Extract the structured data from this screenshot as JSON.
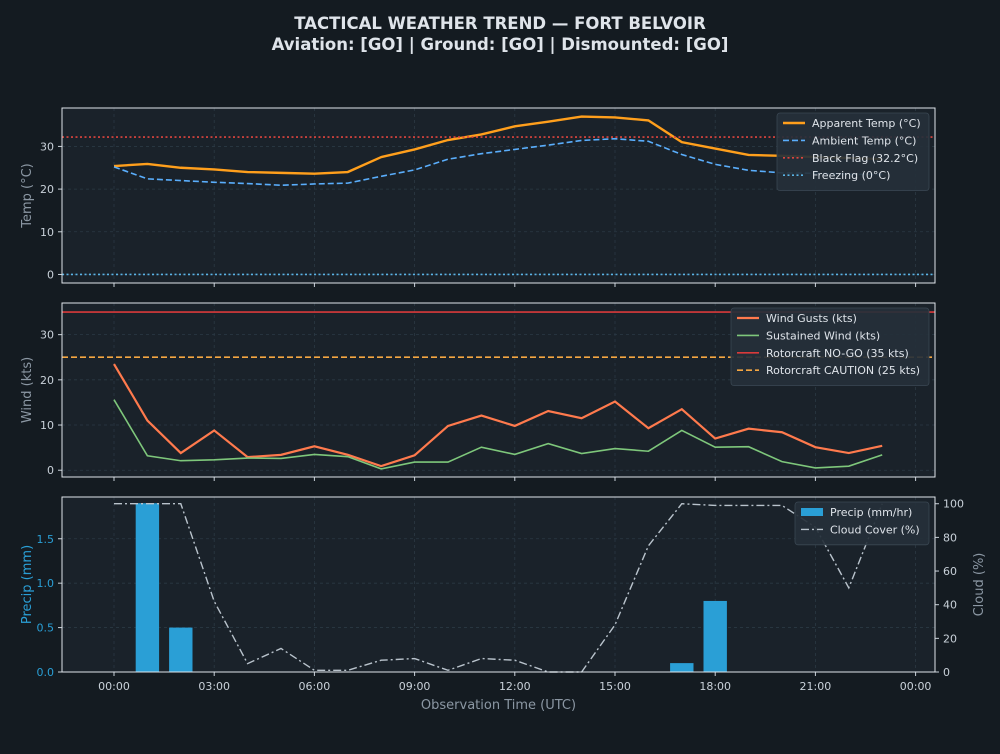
{
  "page": {
    "title_line1": "TACTICAL WEATHER TREND — FORT BELVOIR",
    "title_line2": "Aviation: [GO]  |  Ground: [GO]  |  Dismounted: [GO]"
  },
  "colors": {
    "background": "#141b21",
    "panel": "#1a222a",
    "grid": "#2b3944",
    "axis_text": "#c9d1d9",
    "label_text": "#8b97a3",
    "apparent_temp": "#ff9f1c",
    "ambient_temp": "#5aaefc",
    "black_flag": "#e0443e",
    "freezing": "#5ab4e6",
    "gusts": "#ff7a4d",
    "sustained": "#7ec77b",
    "nogo": "#d93a3a",
    "caution": "#f5a742",
    "precip": "#2a9fd6",
    "cloud": "#b9c3cc"
  },
  "chart_data": [
    {
      "type": "line",
      "panel": "temperature",
      "ylabel": "Temp (°C)",
      "ylim": [
        -2,
        39
      ],
      "yticks": [
        0,
        10,
        20,
        30
      ],
      "x_hours": [
        0,
        1,
        2,
        3,
        4,
        5,
        6,
        7,
        8,
        9,
        10,
        11,
        12,
        13,
        14,
        15,
        16,
        17,
        18,
        19,
        20,
        21,
        22,
        23
      ],
      "series": [
        {
          "name": "Apparent Temp (°C)",
          "style": "solid",
          "values": [
            25.4,
            25.9,
            25.0,
            24.6,
            24.0,
            23.8,
            23.6,
            24.0,
            27.5,
            29.3,
            31.5,
            32.8,
            34.7,
            35.8,
            37.0,
            36.8,
            36.1,
            31.0,
            29.5,
            28.0,
            27.8,
            27.5,
            27.3,
            27.0
          ]
        },
        {
          "name": "Ambient Temp (°C)",
          "style": "dashed",
          "values": [
            25.2,
            22.4,
            22.0,
            21.6,
            21.3,
            20.9,
            21.2,
            21.4,
            23.0,
            24.5,
            27.0,
            28.3,
            29.3,
            30.3,
            31.4,
            31.8,
            31.2,
            28.1,
            25.8,
            24.4,
            23.8,
            23.7,
            23.5,
            23.4
          ]
        }
      ],
      "reference_lines": [
        {
          "name": "Black Flag (32.2°C)",
          "value": 32.2,
          "style": "dotted"
        },
        {
          "name": "Freezing (0°C)",
          "value": 0,
          "style": "dotted"
        }
      ],
      "legend": "top-right",
      "grid": true
    },
    {
      "type": "line",
      "panel": "wind",
      "ylabel": "Wind (kts)",
      "ylim": [
        -1.5,
        37
      ],
      "yticks": [
        0,
        10,
        20,
        30
      ],
      "x_hours": [
        0,
        1,
        2,
        3,
        4,
        5,
        6,
        7,
        8,
        9,
        10,
        11,
        12,
        13,
        14,
        15,
        16,
        17,
        18,
        19,
        20,
        21,
        22,
        23
      ],
      "series": [
        {
          "name": "Wind Gusts (kts)",
          "style": "solid",
          "values": [
            23.5,
            11.0,
            3.8,
            8.8,
            2.9,
            3.4,
            5.3,
            3.4,
            0.9,
            3.3,
            9.8,
            12.1,
            9.8,
            13.1,
            11.5,
            15.2,
            9.3,
            13.5,
            7.0,
            9.2,
            8.4,
            5.1,
            3.8,
            5.4
          ]
        },
        {
          "name": "Sustained Wind (kts)",
          "style": "solid",
          "values": [
            15.6,
            3.2,
            2.1,
            2.3,
            2.7,
            2.6,
            3.5,
            3.0,
            0.3,
            1.8,
            1.8,
            5.1,
            3.5,
            5.9,
            3.7,
            4.8,
            4.2,
            8.8,
            5.1,
            5.2,
            1.9,
            0.5,
            0.9,
            3.4
          ]
        }
      ],
      "reference_lines": [
        {
          "name": "Rotorcraft NO-GO (35 kts)",
          "value": 35,
          "style": "solid"
        },
        {
          "name": "Rotorcraft CAUTION (25 kts)",
          "value": 25,
          "style": "dashed"
        }
      ],
      "legend": "top-right",
      "grid": true
    },
    {
      "type": "bar",
      "panel": "precipitation",
      "ylabel": "Precip (mm)",
      "y2label": "Cloud (%)",
      "xlabel": "Observation Time (UTC)",
      "ylim": [
        0,
        1.97
      ],
      "yticks": [
        0.0,
        0.5,
        1.0,
        1.5
      ],
      "y2lim": [
        0,
        104
      ],
      "y2ticks": [
        0,
        20,
        40,
        60,
        80,
        100
      ],
      "x_hours": [
        0,
        1,
        2,
        3,
        4,
        5,
        6,
        7,
        8,
        9,
        10,
        11,
        12,
        13,
        14,
        15,
        16,
        17,
        18,
        19,
        20,
        21,
        22,
        23
      ],
      "xtick_labels": [
        "00:00",
        "03:00",
        "06:00",
        "09:00",
        "12:00",
        "15:00",
        "18:00",
        "21:00",
        "00:00"
      ],
      "xtick_hours": [
        0,
        3,
        6,
        9,
        12,
        15,
        18,
        21,
        24
      ],
      "series": [
        {
          "name": "Precip (mm/hr)",
          "kind": "bar",
          "axis": "left",
          "values": [
            0,
            1.9,
            0.5,
            0,
            0,
            0,
            0,
            0,
            0,
            0,
            0,
            0,
            0,
            0,
            0,
            0,
            0,
            0.1,
            0.8,
            0,
            0,
            0,
            0,
            0
          ]
        },
        {
          "name": "Cloud Cover (%)",
          "kind": "line",
          "style": "dashdot",
          "axis": "right",
          "values": [
            100,
            100,
            100,
            42,
            5,
            14,
            1,
            1,
            7,
            8,
            1,
            8,
            7,
            0,
            0,
            28,
            75,
            100,
            99,
            99,
            99,
            86,
            50,
            100
          ]
        }
      ],
      "legend": "top-right",
      "grid": true
    }
  ]
}
